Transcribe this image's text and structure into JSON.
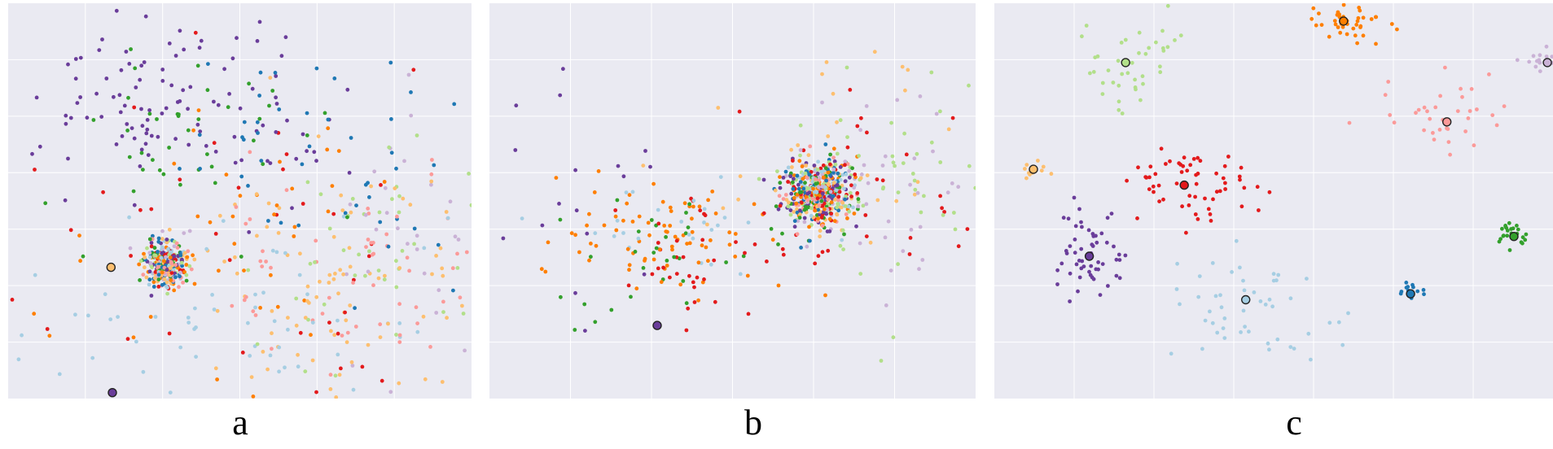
{
  "figure": {
    "panel_labels": [
      "a",
      "b",
      "c"
    ]
  },
  "style": {
    "background": "#eaeaf2",
    "grid_color": "#ffffff",
    "marker_edge_color": "#222222"
  },
  "palette": [
    "#a6cee3",
    "#1f78b4",
    "#b2df8a",
    "#33a02c",
    "#fb9a99",
    "#e31a1c",
    "#fdbf6f",
    "#ff7f00",
    "#cab2d6",
    "#6a3d9a"
  ],
  "chart_data": [
    {
      "type": "scatter",
      "panel": "a",
      "title": "",
      "xlabel": "",
      "ylabel": "",
      "xlim": [
        0,
        100
      ],
      "ylim": [
        0,
        100
      ],
      "grid": true,
      "legend": "none",
      "series_colors_by_palette_index": [
        0,
        1,
        2,
        3,
        4,
        5,
        6,
        7,
        8,
        9
      ],
      "clusters": [
        {
          "cx": 34,
          "cy": 34,
          "sx": 2.2,
          "sy": 2.8,
          "n": 320,
          "mix": true,
          "seed": 11
        },
        {
          "cx": 38,
          "cy": 75,
          "sx": 15,
          "sy": 12,
          "n": 110,
          "mix": false,
          "series": 9,
          "seed": 12
        },
        {
          "cx": 36,
          "cy": 62,
          "sx": 14,
          "sy": 12,
          "n": 40,
          "mix": false,
          "series": 3,
          "seed": 13
        },
        {
          "cx": 55,
          "cy": 68,
          "sx": 12,
          "sy": 14,
          "n": 24,
          "mix": false,
          "series": 1,
          "seed": 14
        },
        {
          "cx": 70,
          "cy": 28,
          "sx": 18,
          "sy": 16,
          "n": 90,
          "mix": false,
          "series": 6,
          "seed": 15
        },
        {
          "cx": 75,
          "cy": 32,
          "sx": 16,
          "sy": 14,
          "n": 60,
          "mix": false,
          "series": 4,
          "seed": 16
        },
        {
          "cx": 80,
          "cy": 38,
          "sx": 14,
          "sy": 16,
          "n": 45,
          "mix": false,
          "series": 2,
          "seed": 17
        },
        {
          "cx": 88,
          "cy": 40,
          "sx": 10,
          "sy": 18,
          "n": 30,
          "mix": false,
          "series": 8,
          "seed": 18
        },
        {
          "cx": 48,
          "cy": 20,
          "sx": 22,
          "sy": 12,
          "n": 60,
          "mix": false,
          "series": 0,
          "seed": 19
        },
        {
          "cx": 50,
          "cy": 40,
          "sx": 18,
          "sy": 16,
          "n": 40,
          "mix": false,
          "series": 7,
          "seed": 20
        },
        {
          "cx": 40,
          "cy": 45,
          "sx": 40,
          "sy": 30,
          "n": 45,
          "mix": false,
          "series": 5,
          "seed": 21
        },
        {
          "cx": 82,
          "cy": 55,
          "sx": 10,
          "sy": 15,
          "n": 25,
          "mix": false,
          "series": 1,
          "seed": 22
        }
      ],
      "highlighted_points": [
        {
          "x": 22.5,
          "y": 1.5,
          "series": 9
        },
        {
          "x": 22.2,
          "y": 33.2,
          "series": 6
        }
      ]
    },
    {
      "type": "scatter",
      "panel": "b",
      "title": "",
      "xlabel": "",
      "ylabel": "",
      "xlim": [
        0,
        100
      ],
      "ylim": [
        0,
        100
      ],
      "grid": true,
      "legend": "none",
      "series_colors_by_palette_index": [
        0,
        1,
        2,
        3,
        4,
        5,
        6,
        7,
        8,
        9
      ],
      "clusters": [
        {
          "cx": 68,
          "cy": 52,
          "sx": 3.8,
          "sy": 4.6,
          "n": 520,
          "mix": true,
          "seed": 31
        },
        {
          "cx": 37,
          "cy": 40,
          "sx": 11,
          "sy": 8,
          "n": 80,
          "mix": false,
          "series": 7,
          "seed": 32
        },
        {
          "cx": 35,
          "cy": 36,
          "sx": 10,
          "sy": 8,
          "n": 30,
          "mix": false,
          "series": 3,
          "seed": 33
        },
        {
          "cx": 42,
          "cy": 36,
          "sx": 10,
          "sy": 8,
          "n": 40,
          "mix": false,
          "series": 5,
          "seed": 34
        },
        {
          "cx": 38,
          "cy": 42,
          "sx": 10,
          "sy": 6,
          "n": 25,
          "mix": false,
          "series": 0,
          "seed": 35
        },
        {
          "cx": 82,
          "cy": 55,
          "sx": 12,
          "sy": 14,
          "n": 45,
          "mix": false,
          "series": 2,
          "seed": 36
        },
        {
          "cx": 84,
          "cy": 55,
          "sx": 9,
          "sy": 16,
          "n": 30,
          "mix": false,
          "series": 8,
          "seed": 37
        },
        {
          "cx": 22,
          "cy": 45,
          "sx": 12,
          "sy": 16,
          "n": 18,
          "mix": false,
          "series": 9,
          "seed": 38
        },
        {
          "cx": 70,
          "cy": 62,
          "sx": 16,
          "sy": 14,
          "n": 30,
          "mix": false,
          "series": 6,
          "seed": 39
        },
        {
          "cx": 82,
          "cy": 52,
          "sx": 12,
          "sy": 12,
          "n": 25,
          "mix": false,
          "series": 5,
          "seed": 40
        }
      ],
      "highlighted_points": [
        {
          "x": 34.5,
          "y": 18.5,
          "series": 9
        }
      ]
    },
    {
      "type": "scatter",
      "panel": "c",
      "title": "",
      "xlabel": "",
      "ylabel": "",
      "xlim": [
        0,
        100
      ],
      "ylim": [
        0,
        100
      ],
      "grid": true,
      "legend": "none",
      "series_colors_by_palette_index": [
        0,
        1,
        2,
        3,
        4,
        5,
        6,
        7,
        8,
        9
      ],
      "clusters": [
        {
          "cx": 23.5,
          "cy": 85,
          "sx": 5,
          "sy": 5,
          "n": 40,
          "mix": false,
          "series": 2,
          "seed": 51
        },
        {
          "cx": 63,
          "cy": 95,
          "sx": 3,
          "sy": 2.5,
          "n": 40,
          "mix": false,
          "series": 7,
          "seed": 52
        },
        {
          "cx": 98,
          "cy": 85,
          "sx": 2,
          "sy": 2,
          "n": 18,
          "mix": false,
          "series": 8,
          "seed": 53
        },
        {
          "cx": 7,
          "cy": 58,
          "sx": 1.5,
          "sy": 1.5,
          "n": 10,
          "mix": false,
          "series": 6,
          "seed": 54
        },
        {
          "cx": 36,
          "cy": 53,
          "sx": 6,
          "sy": 5,
          "n": 60,
          "mix": false,
          "series": 5,
          "seed": 55
        },
        {
          "cx": 81,
          "cy": 71,
          "sx": 5,
          "sy": 5,
          "n": 35,
          "mix": false,
          "series": 4,
          "seed": 56
        },
        {
          "cx": 17,
          "cy": 37,
          "sx": 3.5,
          "sy": 5,
          "n": 55,
          "mix": false,
          "series": 9,
          "seed": 57
        },
        {
          "cx": 93,
          "cy": 41,
          "sx": 1.6,
          "sy": 1.8,
          "n": 25,
          "mix": false,
          "series": 3,
          "seed": 58
        },
        {
          "cx": 75,
          "cy": 27,
          "sx": 1.2,
          "sy": 1.2,
          "n": 15,
          "mix": false,
          "series": 1,
          "seed": 59
        },
        {
          "cx": 45,
          "cy": 22,
          "sx": 8,
          "sy": 8,
          "n": 50,
          "mix": false,
          "series": 0,
          "seed": 60
        }
      ],
      "highlighted_points": [
        {
          "x": 23.5,
          "y": 85,
          "series": 2
        },
        {
          "x": 62.5,
          "y": 95.5,
          "series": 7
        },
        {
          "x": 99,
          "cy": 85,
          "y": 85,
          "series": 8
        },
        {
          "x": 7,
          "y": 58,
          "series": 6
        },
        {
          "x": 34,
          "y": 54,
          "series": 5
        },
        {
          "x": 81,
          "y": 70,
          "series": 4
        },
        {
          "x": 17,
          "y": 36,
          "series": 9
        },
        {
          "x": 93,
          "y": 41,
          "series": 3
        },
        {
          "x": 74.5,
          "y": 26.5,
          "series": 1
        },
        {
          "x": 45,
          "y": 25,
          "series": 0
        }
      ]
    }
  ]
}
